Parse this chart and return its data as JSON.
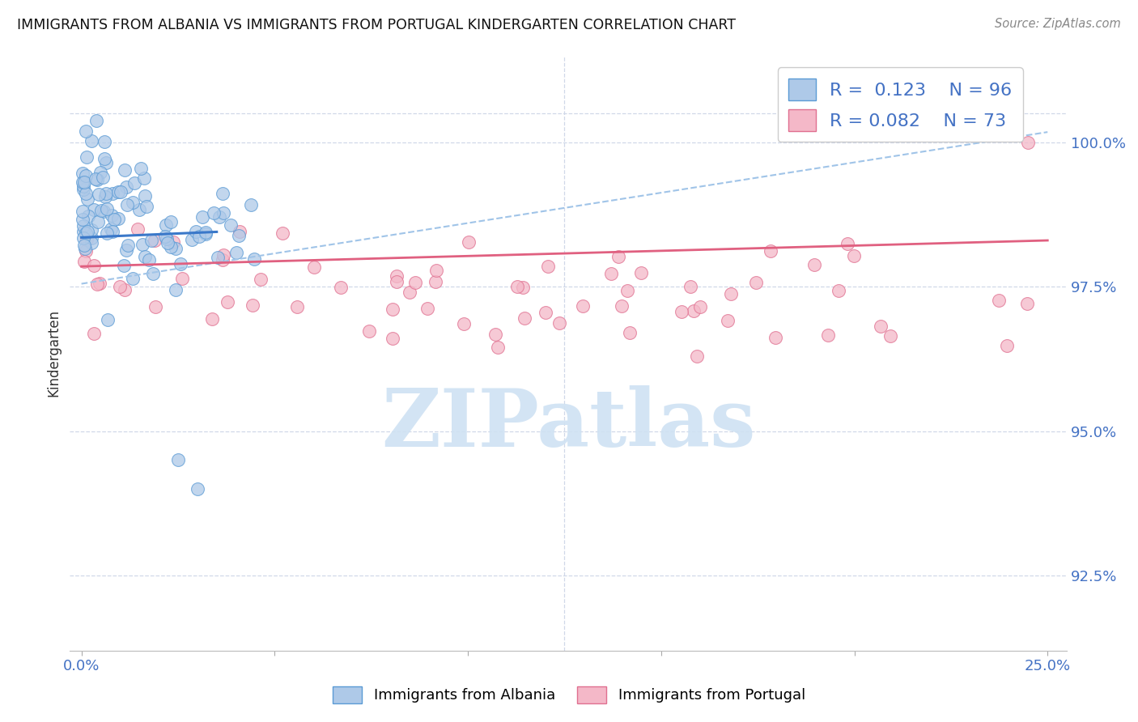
{
  "title": "IMMIGRANTS FROM ALBANIA VS IMMIGRANTS FROM PORTUGAL KINDERGARTEN CORRELATION CHART",
  "source": "Source: ZipAtlas.com",
  "ylabel": "Kindergarten",
  "ytick_labels": [
    "92.5%",
    "95.0%",
    "97.5%",
    "100.0%"
  ],
  "ytick_values": [
    92.5,
    95.0,
    97.5,
    100.0
  ],
  "xlim_left": -0.3,
  "xlim_right": 25.5,
  "ylim_bottom": 91.2,
  "ylim_top": 101.5,
  "legend_blue_r": "0.123",
  "legend_blue_n": "96",
  "legend_pink_r": "0.082",
  "legend_pink_n": "73",
  "blue_fill_color": "#aec9e8",
  "blue_edge_color": "#5b9bd5",
  "pink_fill_color": "#f4b8c8",
  "pink_edge_color": "#e07090",
  "blue_line_color": "#3a78c9",
  "blue_dashed_color": "#a0c4e8",
  "pink_line_color": "#e06080",
  "blue_solid_intercept": 98.35,
  "blue_solid_slope": 0.028,
  "blue_dashed_intercept": 97.55,
  "blue_dashed_slope": 0.105,
  "pink_intercept": 97.85,
  "pink_slope": 0.018,
  "watermark_text": "ZIPatlas",
  "watermark_color": "#cfe2f3",
  "background_color": "#ffffff",
  "grid_color": "#d0d8e8"
}
